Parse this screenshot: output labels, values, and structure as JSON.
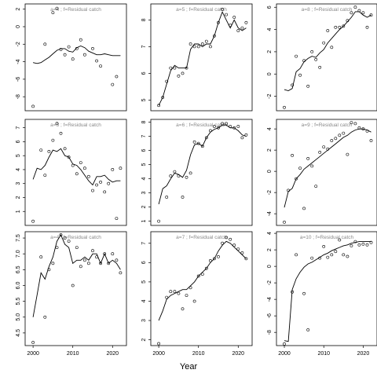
{
  "chart_data": {
    "type": "scatter",
    "xlabel": "Year",
    "layout": "3x3 small multiples, shared x axis ticks on bottom row only",
    "panels": [
      {
        "title": "a=4 ; f=Residual catch",
        "xlim": [
          1998,
          2023.5
        ],
        "ylim": [
          -9.6,
          2.6
        ],
        "yticks": [
          -8,
          -6,
          -4,
          -2,
          0,
          2
        ],
        "points": {
          "x": [
            2000,
            2003,
            2005,
            2006,
            2007,
            2008,
            2009,
            2010,
            2011,
            2012,
            2013,
            2015,
            2016,
            2017,
            2020,
            2021
          ],
          "y": [
            -9.1,
            -2.0,
            1.6,
            2.1,
            -2.6,
            -3.2,
            -2.3,
            -3.7,
            -2.5,
            -1.5,
            -3.2,
            -2.5,
            -3.9,
            -4.5,
            -6.6,
            -5.7
          ]
        },
        "fit": {
          "x": [
            2000,
            2001,
            2002,
            2003,
            2004,
            2005,
            2006,
            2007,
            2008,
            2009,
            2010,
            2011,
            2012,
            2013,
            2014,
            2015,
            2016,
            2017,
            2018,
            2019,
            2020,
            2021,
            2022
          ],
          "y": [
            -4.1,
            -4.2,
            -4.1,
            -3.8,
            -3.5,
            -3.1,
            -2.7,
            -2.5,
            -2.5,
            -2.8,
            -2.9,
            -2.4,
            -2.2,
            -2.4,
            -2.8,
            -3.0,
            -3.2,
            -3.2,
            -3.1,
            -3.2,
            -3.3,
            -3.3,
            -3.3
          ]
        }
      },
      {
        "title": "a=5 ; f=Residual catch",
        "xlim": [
          1998,
          2023.5
        ],
        "ylim": [
          4.6,
          8.6
        ],
        "yticks": [
          5,
          6,
          7,
          8
        ],
        "points": {
          "x": [
            2000,
            2001,
            2002,
            2003,
            2004,
            2005,
            2006,
            2007,
            2008,
            2009,
            2010,
            2011,
            2012,
            2013,
            2014,
            2015,
            2016,
            2017,
            2018,
            2019,
            2020,
            2021,
            2022
          ],
          "y": [
            4.8,
            5.1,
            5.7,
            6.2,
            6.2,
            5.9,
            6.0,
            6.2,
            7.1,
            7.0,
            7.0,
            7.1,
            7.2,
            7.0,
            7.4,
            7.9,
            8.4,
            8.2,
            7.8,
            8.1,
            7.6,
            7.7,
            7.9
          ]
        },
        "fit": {
          "x": [
            2000,
            2001,
            2002,
            2003,
            2004,
            2005,
            2006,
            2007,
            2008,
            2009,
            2010,
            2011,
            2012,
            2013,
            2014,
            2015,
            2016,
            2017,
            2018,
            2019,
            2020,
            2021,
            2022
          ],
          "y": [
            4.8,
            5.1,
            5.6,
            6.1,
            6.3,
            6.2,
            6.2,
            6.2,
            6.9,
            7.1,
            7.1,
            7.0,
            7.1,
            7.1,
            7.4,
            7.9,
            8.3,
            8.0,
            7.7,
            8.0,
            7.7,
            7.6,
            7.7
          ]
        }
      },
      {
        "title": "a=8 ; f=Residual catch",
        "xlim": [
          1998,
          2023.5
        ],
        "ylim": [
          -3.3,
          6.3
        ],
        "yticks": [
          -2,
          0,
          2,
          4,
          6
        ],
        "points": {
          "x": [
            2000,
            2002,
            2003,
            2004,
            2005,
            2006,
            2007,
            2008,
            2009,
            2010,
            2011,
            2012,
            2013,
            2014,
            2015,
            2016,
            2017,
            2018,
            2019,
            2020,
            2021,
            2022
          ],
          "y": [
            -3.0,
            -1.0,
            1.6,
            -0.1,
            1.2,
            -1.1,
            2.0,
            1.3,
            0.6,
            2.8,
            3.9,
            2.4,
            4.2,
            4.2,
            4.3,
            4.8,
            5.5,
            6.0,
            5.7,
            5.5,
            4.2,
            5.3
          ]
        },
        "fit": {
          "x": [
            2000,
            2001,
            2002,
            2003,
            2004,
            2005,
            2006,
            2007,
            2008,
            2009,
            2010,
            2011,
            2012,
            2013,
            2014,
            2015,
            2016,
            2017,
            2018,
            2019,
            2020,
            2021,
            2022
          ],
          "y": [
            -1.4,
            -1.5,
            -1.3,
            0.2,
            0.5,
            1.1,
            1.4,
            1.6,
            1.5,
            1.9,
            2.2,
            2.8,
            3.2,
            3.6,
            4.0,
            4.3,
            4.7,
            5.1,
            5.6,
            5.6,
            5.3,
            5.1,
            5.3
          ]
        }
      },
      {
        "title": "a=3 ; f=Residual catch",
        "xlim": [
          1998,
          2023.5
        ],
        "ylim": [
          0,
          7.6
        ],
        "yticks": [
          1,
          2,
          3,
          4,
          5,
          6,
          7
        ],
        "points": {
          "x": [
            2000,
            2002,
            2003,
            2004,
            2005,
            2006,
            2007,
            2008,
            2009,
            2010,
            2011,
            2012,
            2013,
            2014,
            2015,
            2016,
            2017,
            2018,
            2019,
            2020,
            2021,
            2022
          ],
          "y": [
            0.3,
            5.4,
            3.6,
            5.3,
            6.1,
            7.3,
            6.6,
            5.5,
            4.9,
            4.3,
            3.7,
            4.5,
            4.1,
            3.5,
            2.5,
            2.9,
            3.1,
            2.4,
            3.0,
            4.0,
            0.5,
            4.1
          ]
        },
        "fit": {
          "x": [
            2000,
            2001,
            2002,
            2003,
            2004,
            2005,
            2006,
            2007,
            2008,
            2009,
            2010,
            2011,
            2012,
            2013,
            2014,
            2015,
            2016,
            2017,
            2018,
            2019,
            2020,
            2021,
            2022
          ],
          "y": [
            3.3,
            4.1,
            4.0,
            4.3,
            4.9,
            5.4,
            5.3,
            5.5,
            5.0,
            4.9,
            4.4,
            4.3,
            4.0,
            3.6,
            3.2,
            2.9,
            3.5,
            3.5,
            3.6,
            3.3,
            3.1,
            3.2,
            3.2
          ]
        }
      },
      {
        "title": "a=6 ; f=Residual catch",
        "xlim": [
          1998,
          2023.5
        ],
        "ylim": [
          0.7,
          8.2
        ],
        "yticks": [
          1,
          2,
          3,
          4,
          5,
          6,
          7,
          8
        ],
        "points": {
          "x": [
            2000,
            2002,
            2003,
            2004,
            2005,
            2006,
            2007,
            2008,
            2009,
            2010,
            2011,
            2012,
            2013,
            2014,
            2015,
            2016,
            2017,
            2018,
            2019,
            2020,
            2021,
            2022
          ],
          "y": [
            1.0,
            2.7,
            4.2,
            4.5,
            4.2,
            2.7,
            4.1,
            4.4,
            6.6,
            6.5,
            6.3,
            6.9,
            7.4,
            7.7,
            7.6,
            7.9,
            7.9,
            7.7,
            7.6,
            7.7,
            6.9,
            7.1
          ]
        },
        "fit": {
          "x": [
            2000,
            2001,
            2002,
            2003,
            2004,
            2005,
            2006,
            2007,
            2008,
            2009,
            2010,
            2011,
            2012,
            2013,
            2014,
            2015,
            2016,
            2017,
            2018,
            2019,
            2020,
            2021,
            2022
          ],
          "y": [
            2.2,
            3.3,
            3.5,
            4.0,
            4.4,
            4.3,
            4.1,
            4.6,
            5.7,
            6.4,
            6.5,
            6.3,
            6.9,
            7.3,
            7.5,
            7.6,
            7.8,
            7.8,
            7.6,
            7.6,
            7.4,
            7.1,
            7.0
          ]
        }
      },
      {
        "title": "a=9 ; f=Residual catch",
        "xlim": [
          1998,
          2023.5
        ],
        "ylim": [
          -5.1,
          4.9
        ],
        "yticks": [
          -4,
          -2,
          0,
          2,
          4
        ],
        "points": {
          "x": [
            2000,
            2001,
            2002,
            2003,
            2004,
            2005,
            2006,
            2007,
            2008,
            2009,
            2010,
            2011,
            2012,
            2013,
            2014,
            2015,
            2016,
            2017,
            2018,
            2019,
            2020,
            2021,
            2022
          ],
          "y": [
            -4.8,
            -1.8,
            1.5,
            -0.7,
            0.3,
            -3.5,
            1.2,
            0.5,
            -1.4,
            1.8,
            2.3,
            2.1,
            2.9,
            3.1,
            3.4,
            3.6,
            1.6,
            4.6,
            4.5,
            4.1,
            4.0,
            3.8,
            2.9
          ]
        },
        "fit": {
          "x": [
            2000,
            2001,
            2002,
            2003,
            2004,
            2005,
            2006,
            2007,
            2008,
            2009,
            2010,
            2011,
            2012,
            2013,
            2014,
            2015,
            2016,
            2017,
            2018,
            2019,
            2020,
            2021,
            2022
          ],
          "y": [
            -3.4,
            -1.9,
            -1.6,
            -0.7,
            -0.3,
            0.2,
            0.5,
            0.8,
            1.1,
            1.4,
            1.7,
            2.0,
            2.3,
            2.6,
            2.9,
            3.2,
            3.4,
            3.7,
            3.9,
            4.0,
            4.0,
            3.9,
            3.7
          ]
        }
      },
      {
        "title": "a=4 ; f=Residual catch",
        "xlim": [
          1998,
          2023.5
        ],
        "ylim": [
          4.1,
          7.7
        ],
        "yticks": [
          4.5,
          5.0,
          5.5,
          6.0,
          6.5,
          7.0,
          7.5
        ],
        "points": {
          "x": [
            2000,
            2002,
            2003,
            2004,
            2005,
            2006,
            2007,
            2008,
            2009,
            2010,
            2011,
            2012,
            2013,
            2014,
            2015,
            2016,
            2017,
            2018,
            2019,
            2020,
            2021,
            2022
          ],
          "y": [
            4.2,
            6.9,
            5.0,
            6.5,
            6.7,
            7.2,
            7.6,
            7.5,
            7.4,
            6.0,
            7.2,
            6.6,
            6.8,
            6.7,
            7.1,
            6.9,
            6.7,
            7.0,
            6.7,
            7.0,
            6.8,
            6.4
          ]
        },
        "fit": {
          "x": [
            2000,
            2001,
            2002,
            2003,
            2004,
            2005,
            2006,
            2007,
            2008,
            2009,
            2010,
            2011,
            2012,
            2013,
            2014,
            2015,
            2016,
            2017,
            2018,
            2019,
            2020,
            2021,
            2022
          ],
          "y": [
            5.0,
            5.7,
            6.4,
            6.2,
            6.6,
            6.9,
            7.4,
            7.6,
            7.3,
            7.2,
            6.7,
            6.8,
            6.8,
            6.9,
            6.8,
            7.0,
            7.0,
            6.7,
            7.0,
            6.7,
            6.8,
            6.7,
            6.5
          ]
        }
      },
      {
        "title": "a=7 ; f=Residual catch",
        "xlim": [
          1998,
          2023.5
        ],
        "ylim": [
          1.7,
          7.6
        ],
        "yticks": [
          2,
          3,
          4,
          5,
          6,
          7
        ],
        "points": {
          "x": [
            2000,
            2002,
            2003,
            2004,
            2005,
            2006,
            2007,
            2008,
            2009,
            2010,
            2011,
            2012,
            2013,
            2014,
            2015,
            2016,
            2017,
            2018,
            2019,
            2020,
            2021,
            2022
          ],
          "y": [
            1.8,
            4.2,
            4.5,
            4.5,
            4.4,
            3.6,
            4.3,
            4.7,
            4.0,
            5.3,
            5.4,
            5.7,
            6.1,
            6.2,
            6.3,
            7.0,
            7.3,
            7.2,
            6.9,
            6.7,
            6.5,
            6.2
          ]
        },
        "fit": {
          "x": [
            2000,
            2001,
            2002,
            2003,
            2004,
            2005,
            2006,
            2007,
            2008,
            2009,
            2010,
            2011,
            2012,
            2013,
            2014,
            2015,
            2016,
            2017,
            2018,
            2019,
            2020,
            2021,
            2022
          ],
          "y": [
            3.0,
            3.5,
            4.1,
            4.3,
            4.4,
            4.5,
            4.6,
            4.6,
            4.8,
            5.0,
            5.3,
            5.5,
            5.7,
            6.0,
            6.2,
            6.6,
            6.9,
            7.1,
            7.0,
            6.8,
            6.6,
            6.4,
            6.2
          ]
        }
      },
      {
        "title": "a=10 ; f=Residual catch",
        "xlim": [
          1998,
          2023.5
        ],
        "ylim": [
          -9.6,
          4.2
        ],
        "yticks": [
          -8,
          -6,
          -4,
          -2,
          0,
          2,
          4
        ],
        "points": {
          "x": [
            2000,
            2002,
            2003,
            2005,
            2006,
            2007,
            2009,
            2010,
            2011,
            2012,
            2013,
            2014,
            2015,
            2016,
            2017,
            2018,
            2019,
            2020,
            2021,
            2022
          ],
          "y": [
            -9.4,
            -3.1,
            1.4,
            -3.3,
            -7.7,
            1.0,
            1.0,
            2.4,
            1.1,
            1.4,
            1.8,
            3.2,
            1.4,
            1.2,
            2.5,
            3.0,
            2.6,
            2.7,
            2.6,
            2.9
          ]
        },
        "fit": {
          "x": [
            2000,
            2001,
            2002,
            2003,
            2004,
            2005,
            2006,
            2007,
            2008,
            2009,
            2010,
            2011,
            2012,
            2013,
            2014,
            2015,
            2016,
            2017,
            2018,
            2019,
            2020,
            2021,
            2022
          ],
          "y": [
            -9.0,
            -9.1,
            -2.8,
            -1.5,
            -0.7,
            -0.1,
            0.3,
            0.5,
            0.8,
            1.1,
            1.4,
            1.6,
            1.9,
            2.1,
            2.3,
            2.5,
            2.6,
            2.8,
            2.9,
            3.0,
            3.0,
            3.0,
            3.0
          ]
        }
      }
    ],
    "xticks": [
      2000,
      2010,
      2020
    ],
    "grid": false,
    "legend": "none"
  }
}
